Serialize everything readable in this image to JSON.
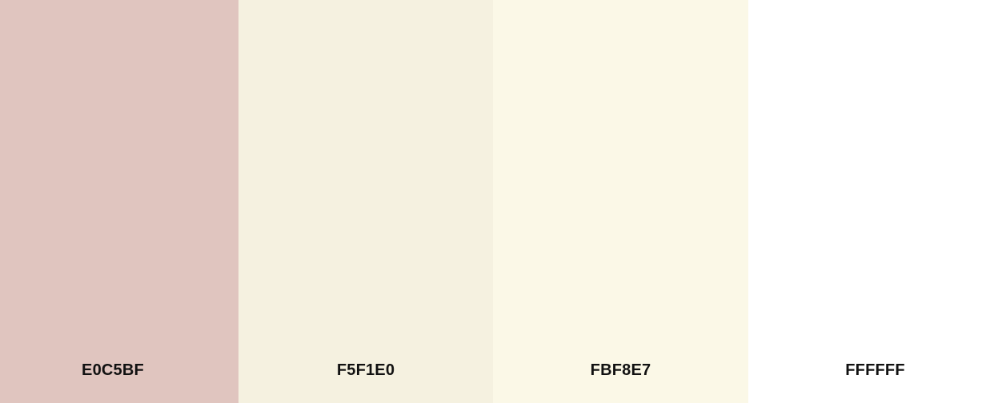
{
  "palette": {
    "swatches": [
      {
        "label": "E0C5BF",
        "color": "#E0C5BF"
      },
      {
        "label": "F5F1E0",
        "color": "#F5F1E0"
      },
      {
        "label": "FBF8E7",
        "color": "#FBF8E7"
      },
      {
        "label": "FFFFFF",
        "color": "#FFFFFF"
      }
    ]
  }
}
